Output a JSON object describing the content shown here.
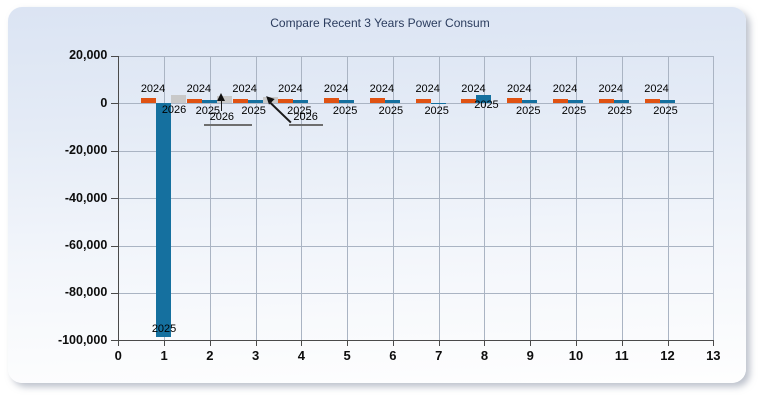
{
  "window": {
    "title": "Compare Recent 3 Years Power Consum"
  },
  "style": {
    "panel_top_color": "#dbe4f3",
    "panel_bottom_color": "#fefefe",
    "gridline_color": "#aab4c3",
    "axis_color": "#4a4a4a",
    "title_color": "#2b3c5e"
  },
  "chart_data": {
    "type": "bar",
    "title": "Compare Recent 3 Years Power Consum",
    "xlabel": "",
    "ylabel": "",
    "x_categories": [
      1,
      2,
      3,
      4,
      5,
      6,
      7,
      8,
      9,
      10,
      11,
      12
    ],
    "xlim": [
      0,
      13
    ],
    "ylim": [
      -100000,
      20000
    ],
    "xticks": [
      0,
      1,
      2,
      3,
      4,
      5,
      6,
      7,
      8,
      9,
      10,
      11,
      12,
      13
    ],
    "yticks": [
      20000,
      0,
      -20000,
      -40000,
      -60000,
      -80000,
      -100000
    ],
    "ytick_labels": [
      "20,000",
      "0",
      "-20,000",
      "-40,000",
      "-60,000",
      "-80,000",
      "-100,000"
    ],
    "grid": true,
    "legend_position": "none",
    "bar_label_style": "each bar group labeled with its year; 2026 at months 2 and 3 use underlined arrow callouts",
    "series": [
      {
        "name": "2024",
        "color": "#e05212",
        "values": [
          2300,
          1900,
          1900,
          1900,
          2300,
          2300,
          1900,
          1900,
          2100,
          1800,
          2000,
          1900
        ]
      },
      {
        "name": "2025",
        "color": "#15709f",
        "values": [
          -98800,
          1500,
          1500,
          1500,
          1500,
          1400,
          150,
          3600,
          1300,
          1400,
          1300,
          1400
        ]
      },
      {
        "name": "2026",
        "color": "#c9c9c9",
        "values": [
          3400,
          2900,
          2700,
          null,
          null,
          null,
          null,
          null,
          null,
          null,
          null,
          null
        ]
      }
    ]
  }
}
